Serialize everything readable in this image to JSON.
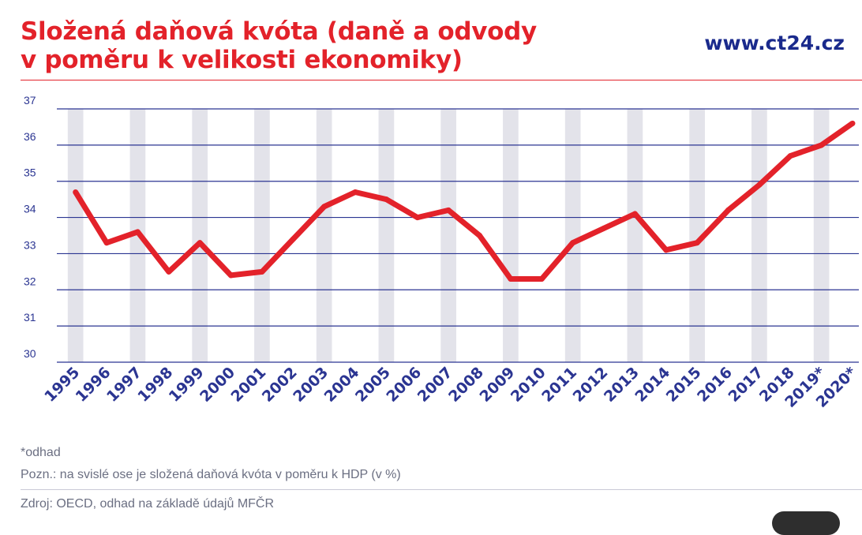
{
  "header": {
    "title_line1": "Složená daňová kvóta (daně a odvody",
    "title_line2": "v poměru k velikosti ekonomiky)",
    "brand": "www.ct24.cz"
  },
  "footer": {
    "estimate_note": "*odhad",
    "axis_note": "Pozn.: na svislé ose je složená daňová kvóta v poměru k HDP (v %)",
    "source": "Zdroj: OECD, odhad na základě údajů MFČR"
  },
  "colors": {
    "title": "#e3222a",
    "brand": "#1a2a8c",
    "line": "#e3222a",
    "gridline": "#2b3592",
    "band": "#e3e3ea",
    "tick_label": "#2b3592",
    "note": "#6b6f82"
  },
  "chart_data": {
    "type": "line",
    "title": "",
    "xlabel": "",
    "ylabel": "",
    "ylim": [
      30,
      37
    ],
    "yticks": [
      30,
      31,
      32,
      33,
      34,
      35,
      36,
      37
    ],
    "grid": true,
    "legend": "none",
    "categories": [
      "1995",
      "1996",
      "1997",
      "1998",
      "1999",
      "2000",
      "2001",
      "2002",
      "2003",
      "2004",
      "2005",
      "2006",
      "2007",
      "2008",
      "2009",
      "2010",
      "2011",
      "2012",
      "2013",
      "2014",
      "2015",
      "2016",
      "2017",
      "2018",
      "2019*",
      "2020*"
    ],
    "series": [
      {
        "values": [
          34.7,
          33.3,
          33.6,
          32.5,
          33.3,
          32.4,
          32.5,
          33.4,
          34.3,
          34.7,
          34.5,
          34.0,
          34.2,
          33.5,
          32.3,
          32.3,
          33.3,
          33.7,
          34.1,
          33.1,
          33.3,
          34.2,
          34.9,
          35.7,
          36.0,
          36.6
        ]
      }
    ]
  }
}
